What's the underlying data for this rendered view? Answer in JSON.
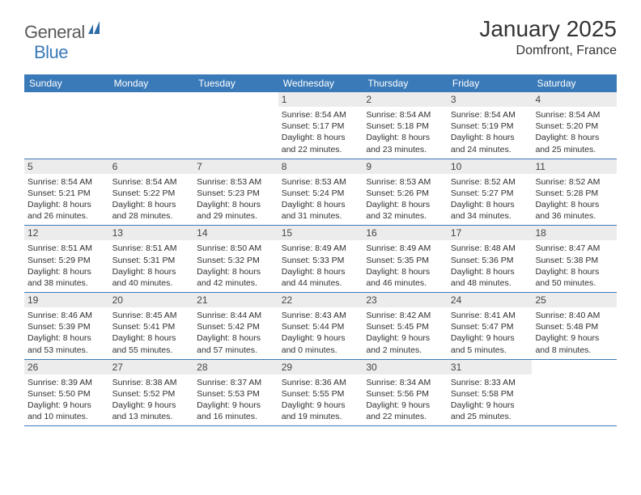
{
  "logo": {
    "text1": "General",
    "text2": "Blue"
  },
  "title": "January 2025",
  "location": "Domfront, France",
  "colors": {
    "header_blue": "#3a7ab8",
    "daynum_bg": "#ececec",
    "text": "#303030",
    "white": "#ffffff"
  },
  "day_names": [
    "Sunday",
    "Monday",
    "Tuesday",
    "Wednesday",
    "Thursday",
    "Friday",
    "Saturday"
  ],
  "weeks": [
    [
      {
        "n": "",
        "sr": "",
        "ss": "",
        "d1": "",
        "d2": ""
      },
      {
        "n": "",
        "sr": "",
        "ss": "",
        "d1": "",
        "d2": ""
      },
      {
        "n": "",
        "sr": "",
        "ss": "",
        "d1": "",
        "d2": ""
      },
      {
        "n": "1",
        "sr": "Sunrise: 8:54 AM",
        "ss": "Sunset: 5:17 PM",
        "d1": "Daylight: 8 hours",
        "d2": "and 22 minutes."
      },
      {
        "n": "2",
        "sr": "Sunrise: 8:54 AM",
        "ss": "Sunset: 5:18 PM",
        "d1": "Daylight: 8 hours",
        "d2": "and 23 minutes."
      },
      {
        "n": "3",
        "sr": "Sunrise: 8:54 AM",
        "ss": "Sunset: 5:19 PM",
        "d1": "Daylight: 8 hours",
        "d2": "and 24 minutes."
      },
      {
        "n": "4",
        "sr": "Sunrise: 8:54 AM",
        "ss": "Sunset: 5:20 PM",
        "d1": "Daylight: 8 hours",
        "d2": "and 25 minutes."
      }
    ],
    [
      {
        "n": "5",
        "sr": "Sunrise: 8:54 AM",
        "ss": "Sunset: 5:21 PM",
        "d1": "Daylight: 8 hours",
        "d2": "and 26 minutes."
      },
      {
        "n": "6",
        "sr": "Sunrise: 8:54 AM",
        "ss": "Sunset: 5:22 PM",
        "d1": "Daylight: 8 hours",
        "d2": "and 28 minutes."
      },
      {
        "n": "7",
        "sr": "Sunrise: 8:53 AM",
        "ss": "Sunset: 5:23 PM",
        "d1": "Daylight: 8 hours",
        "d2": "and 29 minutes."
      },
      {
        "n": "8",
        "sr": "Sunrise: 8:53 AM",
        "ss": "Sunset: 5:24 PM",
        "d1": "Daylight: 8 hours",
        "d2": "and 31 minutes."
      },
      {
        "n": "9",
        "sr": "Sunrise: 8:53 AM",
        "ss": "Sunset: 5:26 PM",
        "d1": "Daylight: 8 hours",
        "d2": "and 32 minutes."
      },
      {
        "n": "10",
        "sr": "Sunrise: 8:52 AM",
        "ss": "Sunset: 5:27 PM",
        "d1": "Daylight: 8 hours",
        "d2": "and 34 minutes."
      },
      {
        "n": "11",
        "sr": "Sunrise: 8:52 AM",
        "ss": "Sunset: 5:28 PM",
        "d1": "Daylight: 8 hours",
        "d2": "and 36 minutes."
      }
    ],
    [
      {
        "n": "12",
        "sr": "Sunrise: 8:51 AM",
        "ss": "Sunset: 5:29 PM",
        "d1": "Daylight: 8 hours",
        "d2": "and 38 minutes."
      },
      {
        "n": "13",
        "sr": "Sunrise: 8:51 AM",
        "ss": "Sunset: 5:31 PM",
        "d1": "Daylight: 8 hours",
        "d2": "and 40 minutes."
      },
      {
        "n": "14",
        "sr": "Sunrise: 8:50 AM",
        "ss": "Sunset: 5:32 PM",
        "d1": "Daylight: 8 hours",
        "d2": "and 42 minutes."
      },
      {
        "n": "15",
        "sr": "Sunrise: 8:49 AM",
        "ss": "Sunset: 5:33 PM",
        "d1": "Daylight: 8 hours",
        "d2": "and 44 minutes."
      },
      {
        "n": "16",
        "sr": "Sunrise: 8:49 AM",
        "ss": "Sunset: 5:35 PM",
        "d1": "Daylight: 8 hours",
        "d2": "and 46 minutes."
      },
      {
        "n": "17",
        "sr": "Sunrise: 8:48 AM",
        "ss": "Sunset: 5:36 PM",
        "d1": "Daylight: 8 hours",
        "d2": "and 48 minutes."
      },
      {
        "n": "18",
        "sr": "Sunrise: 8:47 AM",
        "ss": "Sunset: 5:38 PM",
        "d1": "Daylight: 8 hours",
        "d2": "and 50 minutes."
      }
    ],
    [
      {
        "n": "19",
        "sr": "Sunrise: 8:46 AM",
        "ss": "Sunset: 5:39 PM",
        "d1": "Daylight: 8 hours",
        "d2": "and 53 minutes."
      },
      {
        "n": "20",
        "sr": "Sunrise: 8:45 AM",
        "ss": "Sunset: 5:41 PM",
        "d1": "Daylight: 8 hours",
        "d2": "and 55 minutes."
      },
      {
        "n": "21",
        "sr": "Sunrise: 8:44 AM",
        "ss": "Sunset: 5:42 PM",
        "d1": "Daylight: 8 hours",
        "d2": "and 57 minutes."
      },
      {
        "n": "22",
        "sr": "Sunrise: 8:43 AM",
        "ss": "Sunset: 5:44 PM",
        "d1": "Daylight: 9 hours",
        "d2": "and 0 minutes."
      },
      {
        "n": "23",
        "sr": "Sunrise: 8:42 AM",
        "ss": "Sunset: 5:45 PM",
        "d1": "Daylight: 9 hours",
        "d2": "and 2 minutes."
      },
      {
        "n": "24",
        "sr": "Sunrise: 8:41 AM",
        "ss": "Sunset: 5:47 PM",
        "d1": "Daylight: 9 hours",
        "d2": "and 5 minutes."
      },
      {
        "n": "25",
        "sr": "Sunrise: 8:40 AM",
        "ss": "Sunset: 5:48 PM",
        "d1": "Daylight: 9 hours",
        "d2": "and 8 minutes."
      }
    ],
    [
      {
        "n": "26",
        "sr": "Sunrise: 8:39 AM",
        "ss": "Sunset: 5:50 PM",
        "d1": "Daylight: 9 hours",
        "d2": "and 10 minutes."
      },
      {
        "n": "27",
        "sr": "Sunrise: 8:38 AM",
        "ss": "Sunset: 5:52 PM",
        "d1": "Daylight: 9 hours",
        "d2": "and 13 minutes."
      },
      {
        "n": "28",
        "sr": "Sunrise: 8:37 AM",
        "ss": "Sunset: 5:53 PM",
        "d1": "Daylight: 9 hours",
        "d2": "and 16 minutes."
      },
      {
        "n": "29",
        "sr": "Sunrise: 8:36 AM",
        "ss": "Sunset: 5:55 PM",
        "d1": "Daylight: 9 hours",
        "d2": "and 19 minutes."
      },
      {
        "n": "30",
        "sr": "Sunrise: 8:34 AM",
        "ss": "Sunset: 5:56 PM",
        "d1": "Daylight: 9 hours",
        "d2": "and 22 minutes."
      },
      {
        "n": "31",
        "sr": "Sunrise: 8:33 AM",
        "ss": "Sunset: 5:58 PM",
        "d1": "Daylight: 9 hours",
        "d2": "and 25 minutes."
      },
      {
        "n": "",
        "sr": "",
        "ss": "",
        "d1": "",
        "d2": ""
      }
    ]
  ]
}
